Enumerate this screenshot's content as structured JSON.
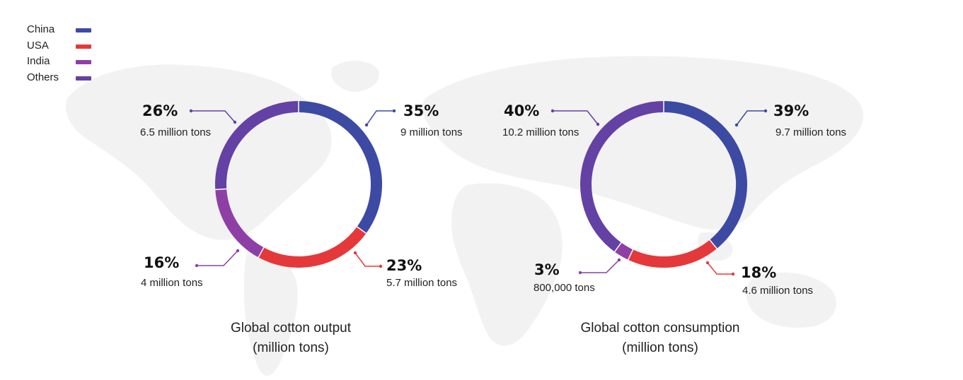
{
  "legend": [
    {
      "name": "China",
      "color": "#3d4aa3"
    },
    {
      "name": "USA",
      "color": "#e5383b"
    },
    {
      "name": "India",
      "color": "#8e3fa5"
    },
    {
      "name": "Others",
      "color": "#6441a4"
    }
  ],
  "chart_data": [
    {
      "type": "pie",
      "title": "Global cotton output (million tons)",
      "categories": [
        "China",
        "USA",
        "India",
        "Others"
      ],
      "values": [
        35,
        23,
        16,
        26
      ],
      "value_labels": [
        "35%",
        "23%",
        "16%",
        "26%"
      ],
      "amount_labels": [
        "9 million tons",
        "5.7 million tons",
        "4 million tons",
        "6.5 million tons"
      ]
    },
    {
      "type": "pie",
      "title": "Global cotton consumption (million tons)",
      "categories": [
        "China",
        "USA",
        "India",
        "Others"
      ],
      "values": [
        39,
        18,
        3,
        40
      ],
      "value_labels": [
        "39%",
        "18%",
        "3%",
        "40%"
      ],
      "amount_labels": [
        "9.7 million tons",
        "4.6 million tons",
        "800,000 tons",
        "10.2 million tons"
      ]
    }
  ]
}
